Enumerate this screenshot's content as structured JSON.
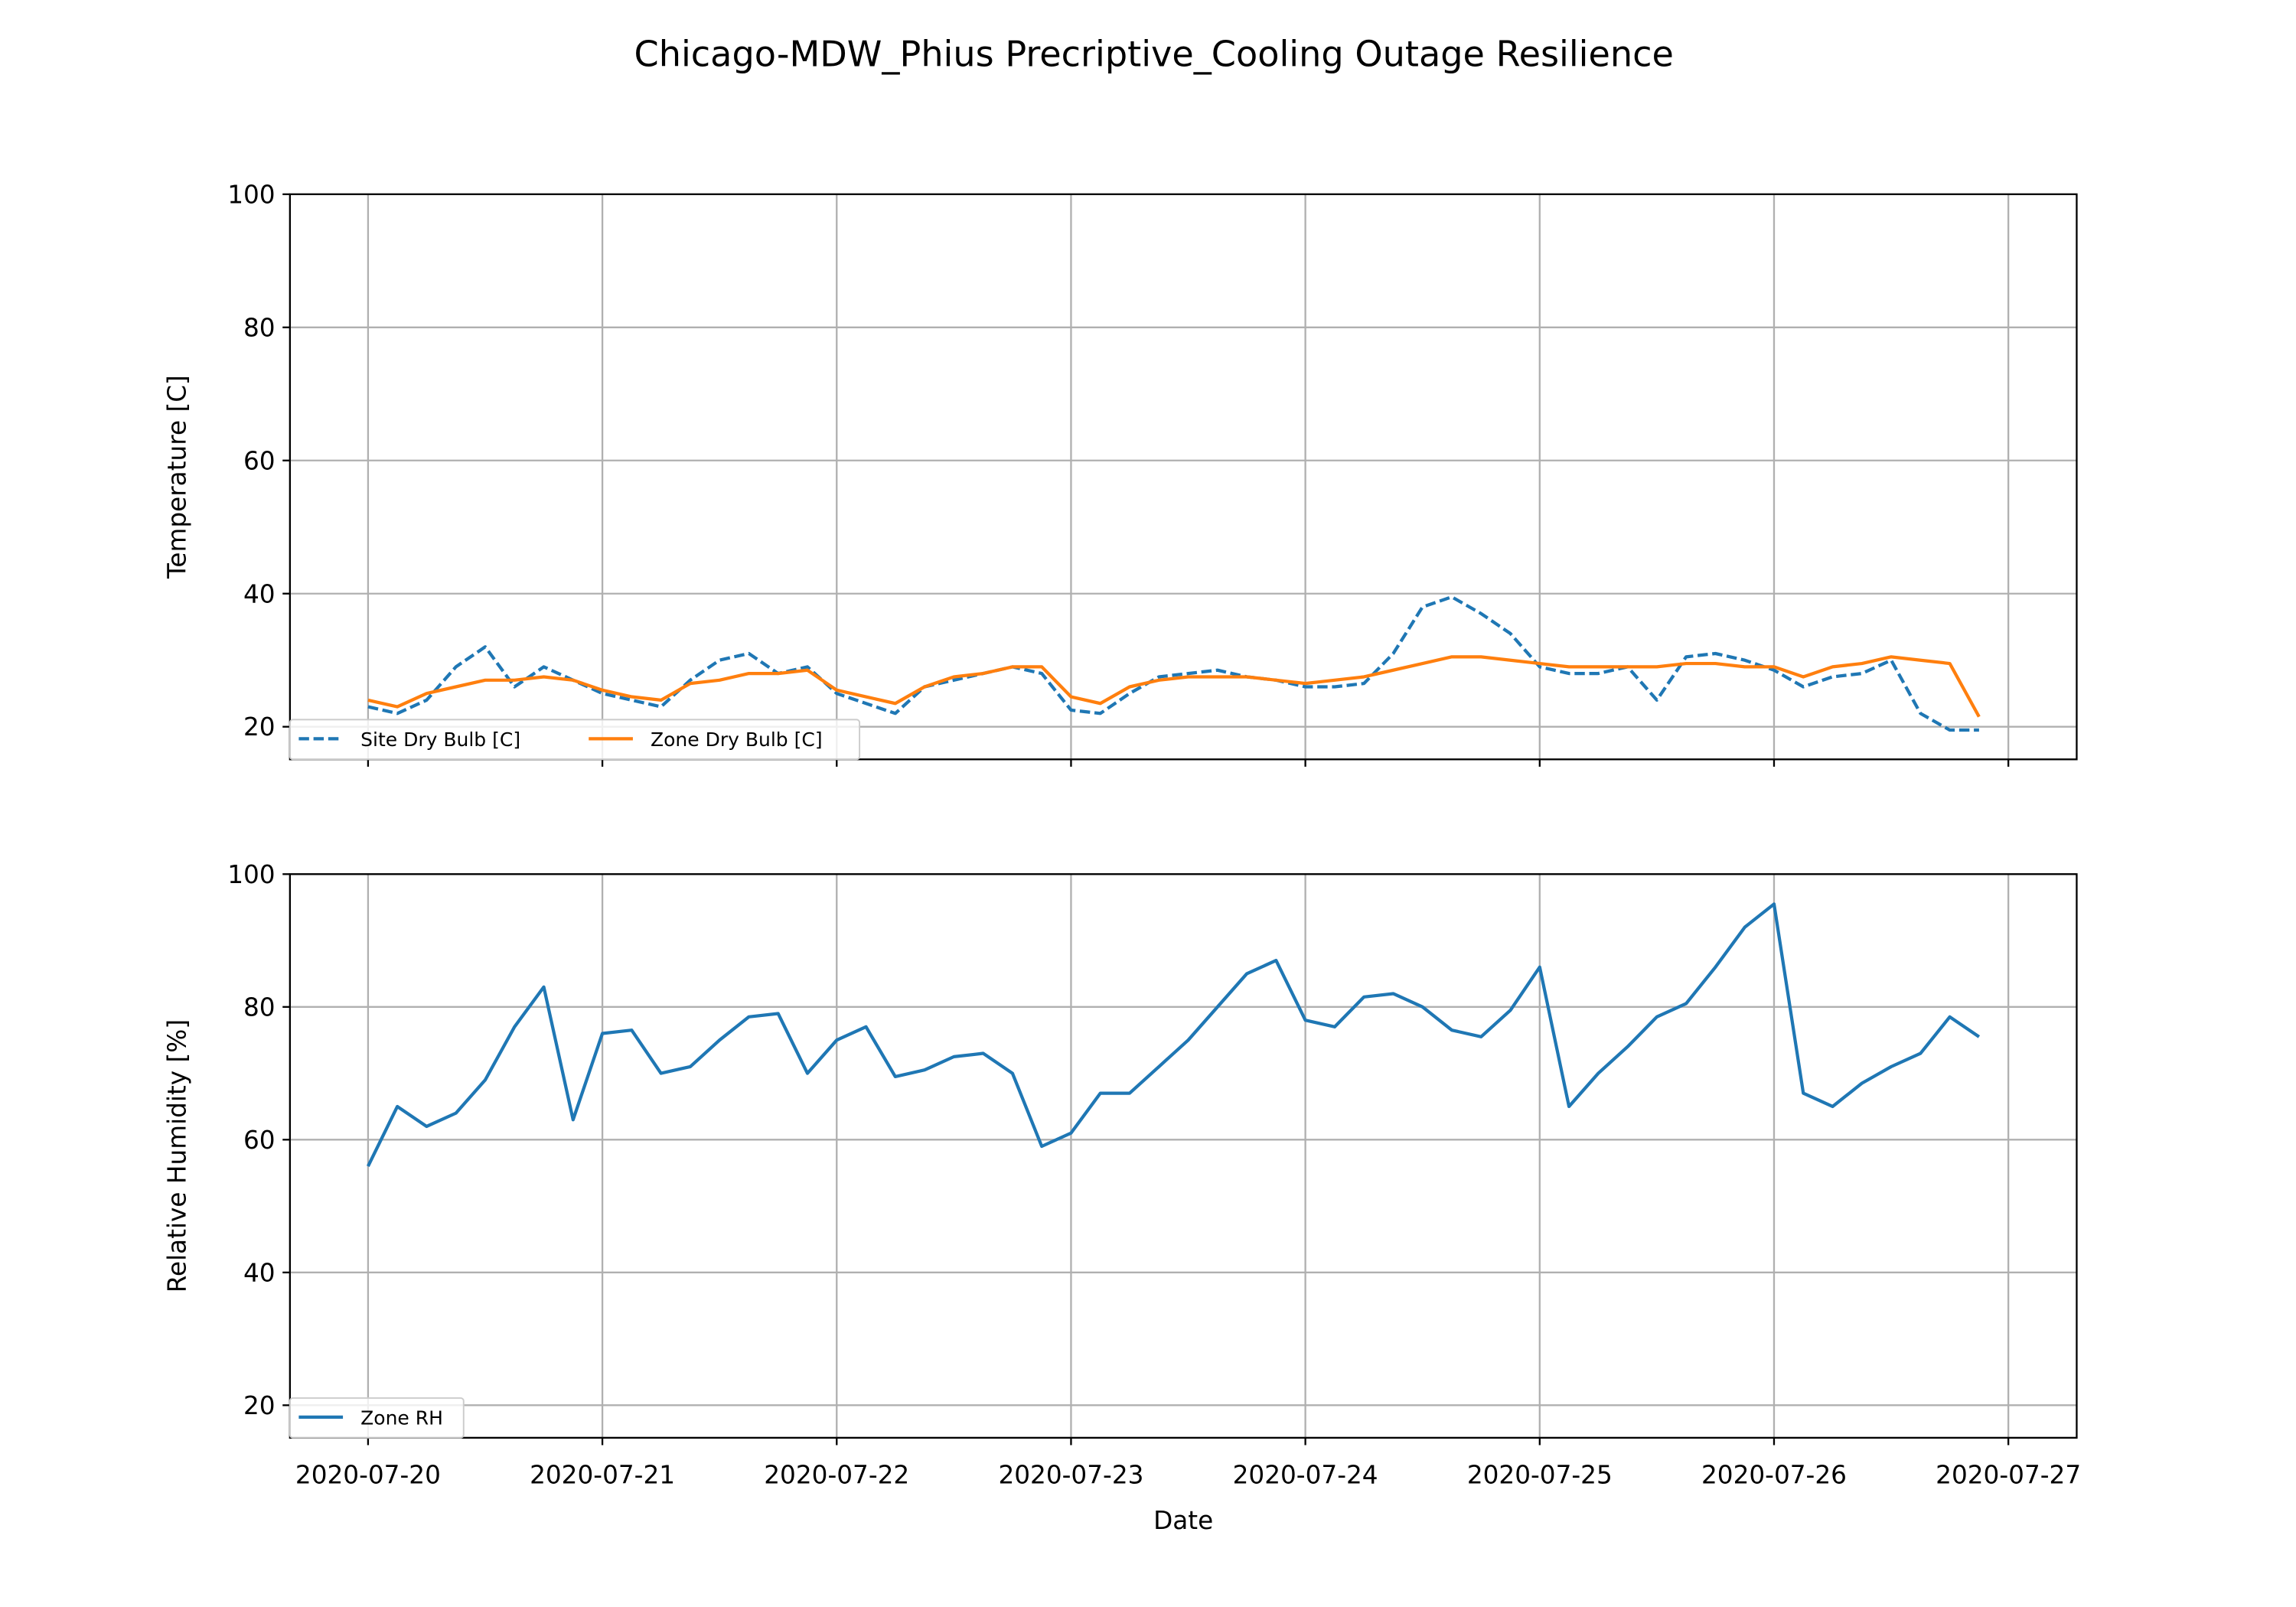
{
  "title": "Chicago-MDW_Phius Precriptive_Cooling Outage Resilience",
  "chart_data": [
    {
      "type": "line",
      "ylabel": "Temperature [C]",
      "x": [
        "2020-07-20T00:00",
        "2020-07-20T03:00",
        "2020-07-20T06:00",
        "2020-07-20T09:00",
        "2020-07-20T12:00",
        "2020-07-20T15:00",
        "2020-07-20T18:00",
        "2020-07-20T21:00",
        "2020-07-21T00:00",
        "2020-07-21T03:00",
        "2020-07-21T06:00",
        "2020-07-21T09:00",
        "2020-07-21T12:00",
        "2020-07-21T15:00",
        "2020-07-21T18:00",
        "2020-07-21T21:00",
        "2020-07-22T00:00",
        "2020-07-22T03:00",
        "2020-07-22T06:00",
        "2020-07-22T09:00",
        "2020-07-22T12:00",
        "2020-07-22T15:00",
        "2020-07-22T18:00",
        "2020-07-22T21:00",
        "2020-07-23T00:00",
        "2020-07-23T03:00",
        "2020-07-23T06:00",
        "2020-07-23T09:00",
        "2020-07-23T12:00",
        "2020-07-23T15:00",
        "2020-07-23T18:00",
        "2020-07-23T21:00",
        "2020-07-24T00:00",
        "2020-07-24T03:00",
        "2020-07-24T06:00",
        "2020-07-24T09:00",
        "2020-07-24T12:00",
        "2020-07-24T15:00",
        "2020-07-24T18:00",
        "2020-07-24T21:00",
        "2020-07-25T00:00",
        "2020-07-25T03:00",
        "2020-07-25T06:00",
        "2020-07-25T09:00",
        "2020-07-25T12:00",
        "2020-07-25T15:00",
        "2020-07-25T18:00",
        "2020-07-25T21:00",
        "2020-07-26T00:00",
        "2020-07-26T03:00",
        "2020-07-26T06:00",
        "2020-07-26T09:00",
        "2020-07-26T12:00",
        "2020-07-26T15:00",
        "2020-07-26T18:00",
        "2020-07-26T21:00"
      ],
      "series": [
        {
          "name": "Site Dry Bulb [C]",
          "color": "#1f77b4",
          "dash": "dashed",
          "values": [
            23,
            22,
            24,
            29,
            32,
            26,
            29,
            27,
            25,
            24,
            23,
            27,
            30,
            31,
            28,
            29,
            25,
            23.5,
            22,
            26,
            27,
            28,
            29,
            28,
            22.5,
            22,
            25,
            27.5,
            28,
            28.5,
            27.5,
            27,
            26,
            26,
            26.5,
            31,
            38,
            39.5,
            37,
            34,
            29,
            28,
            28,
            29,
            24,
            30.5,
            31,
            30,
            28.5,
            26,
            27.5,
            28,
            30,
            22,
            19.5,
            19.5
          ]
        },
        {
          "name": "Zone Dry Bulb [C]",
          "color": "#ff7f0e",
          "dash": "solid",
          "values": [
            24,
            23,
            25,
            26,
            27,
            27,
            27.5,
            27,
            25.5,
            24.5,
            24,
            26.5,
            27,
            28,
            28,
            28.5,
            25.5,
            24.5,
            23.5,
            26,
            27.5,
            28,
            29,
            29,
            24.5,
            23.5,
            26,
            27,
            27.5,
            27.5,
            27.5,
            27,
            26.5,
            27,
            27.5,
            28.5,
            29.5,
            30.5,
            30.5,
            30,
            29.5,
            29,
            29,
            29,
            29,
            29.5,
            29.5,
            29,
            29,
            27.5,
            29,
            29.5,
            30.5,
            30,
            29.5,
            21.5
          ]
        }
      ],
      "xlim": [
        "2020-07-19T16:00",
        "2020-07-27T07:00"
      ],
      "xticks": [
        "2020-07-20",
        "2020-07-21",
        "2020-07-22",
        "2020-07-23",
        "2020-07-24",
        "2020-07-25",
        "2020-07-26",
        "2020-07-27"
      ],
      "show_xtick_labels": false,
      "ylim": [
        15.1,
        100
      ],
      "yticks": [
        20,
        40,
        60,
        80,
        100
      ],
      "grid": true,
      "legend": "lower-left",
      "legend_columns": 2
    },
    {
      "type": "line",
      "ylabel": "Relative Humidity [%]",
      "xlabel": "Date",
      "x": [
        "2020-07-20T00:00",
        "2020-07-20T03:00",
        "2020-07-20T06:00",
        "2020-07-20T09:00",
        "2020-07-20T12:00",
        "2020-07-20T15:00",
        "2020-07-20T18:00",
        "2020-07-20T21:00",
        "2020-07-21T00:00",
        "2020-07-21T03:00",
        "2020-07-21T06:00",
        "2020-07-21T09:00",
        "2020-07-21T12:00",
        "2020-07-21T15:00",
        "2020-07-21T18:00",
        "2020-07-21T21:00",
        "2020-07-22T00:00",
        "2020-07-22T03:00",
        "2020-07-22T06:00",
        "2020-07-22T09:00",
        "2020-07-22T12:00",
        "2020-07-22T15:00",
        "2020-07-22T18:00",
        "2020-07-22T21:00",
        "2020-07-23T00:00",
        "2020-07-23T03:00",
        "2020-07-23T06:00",
        "2020-07-23T09:00",
        "2020-07-23T12:00",
        "2020-07-23T15:00",
        "2020-07-23T18:00",
        "2020-07-23T21:00",
        "2020-07-24T00:00",
        "2020-07-24T03:00",
        "2020-07-24T06:00",
        "2020-07-24T09:00",
        "2020-07-24T12:00",
        "2020-07-24T15:00",
        "2020-07-24T18:00",
        "2020-07-24T21:00",
        "2020-07-25T00:00",
        "2020-07-25T03:00",
        "2020-07-25T06:00",
        "2020-07-25T09:00",
        "2020-07-25T12:00",
        "2020-07-25T15:00",
        "2020-07-25T18:00",
        "2020-07-25T21:00",
        "2020-07-26T00:00",
        "2020-07-26T03:00",
        "2020-07-26T06:00",
        "2020-07-26T09:00",
        "2020-07-26T12:00",
        "2020-07-26T15:00",
        "2020-07-26T18:00",
        "2020-07-26T21:00"
      ],
      "series": [
        {
          "name": "Zone RH",
          "color": "#1f77b4",
          "dash": "solid",
          "values": [
            56,
            65,
            62,
            64,
            69,
            77,
            83,
            63,
            76,
            76.5,
            70,
            71,
            75,
            78.5,
            79,
            70,
            75,
            77,
            69.5,
            70.5,
            72.5,
            73,
            70,
            59,
            61,
            67,
            67,
            71,
            75,
            80,
            85,
            87,
            78,
            77,
            81.5,
            82,
            80,
            76.5,
            75.5,
            79.5,
            86,
            65,
            70,
            74,
            78.5,
            80.5,
            86,
            92,
            95.5,
            67,
            65,
            68.5,
            71,
            73,
            78.5,
            75.5
          ]
        }
      ],
      "xlim": [
        "2020-07-19T16:00",
        "2020-07-27T07:00"
      ],
      "xticks": [
        "2020-07-20",
        "2020-07-21",
        "2020-07-22",
        "2020-07-23",
        "2020-07-24",
        "2020-07-25",
        "2020-07-26",
        "2020-07-27"
      ],
      "show_xtick_labels": true,
      "ylim": [
        15.1,
        100
      ],
      "yticks": [
        20,
        40,
        60,
        80,
        100
      ],
      "grid": true,
      "legend": "lower-left",
      "legend_columns": 1
    }
  ]
}
